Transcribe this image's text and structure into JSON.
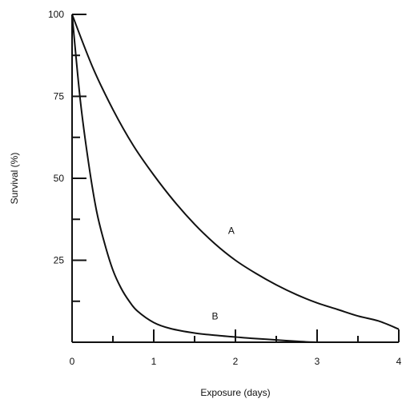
{
  "chart_data": {
    "type": "line",
    "title": "",
    "xlabel": "Exposure (days)",
    "ylabel": "Survival (%)",
    "xlim": [
      0,
      4
    ],
    "ylim": [
      0,
      100
    ],
    "x_ticks_major": [
      0,
      1,
      2,
      3,
      4
    ],
    "x_ticks_minor": [
      0.5,
      1.5,
      2.5,
      3.5
    ],
    "x_tick_labels": [
      "0",
      "1",
      "2",
      "3",
      "4"
    ],
    "y_ticks_major": [
      25,
      50,
      75,
      100
    ],
    "y_ticks_minor": [
      12.5,
      37.5,
      62.5,
      87.5
    ],
    "y_tick_labels": [
      "25",
      "50",
      "75",
      "100"
    ],
    "grid": false,
    "legend": "none",
    "series": [
      {
        "label": "A",
        "x": [
          0,
          0.25,
          0.5,
          0.75,
          1,
          1.25,
          1.5,
          1.75,
          2,
          2.25,
          2.5,
          2.75,
          3,
          3.25,
          3.5,
          3.75,
          4
        ],
        "y": [
          100,
          84,
          71,
          60,
          51,
          43,
          36,
          30,
          25,
          21,
          17.5,
          14.5,
          12,
          10,
          8,
          6.5,
          4
        ]
      },
      {
        "label": "B",
        "x": [
          0,
          0.1,
          0.2,
          0.3,
          0.4,
          0.5,
          0.6,
          0.7,
          0.8,
          1,
          1.2,
          1.5,
          1.8,
          2,
          2.2,
          2.5,
          2.8,
          3
        ],
        "y": [
          100,
          74,
          55,
          40,
          30,
          22,
          16.5,
          12.5,
          9.5,
          6,
          4.2,
          2.8,
          2,
          1.6,
          1.2,
          0.7,
          0.2,
          0
        ]
      }
    ],
    "annotations": [
      {
        "text": "A",
        "x": 1.95,
        "y": 33
      },
      {
        "text": "B",
        "x": 1.75,
        "y": 7
      }
    ]
  }
}
